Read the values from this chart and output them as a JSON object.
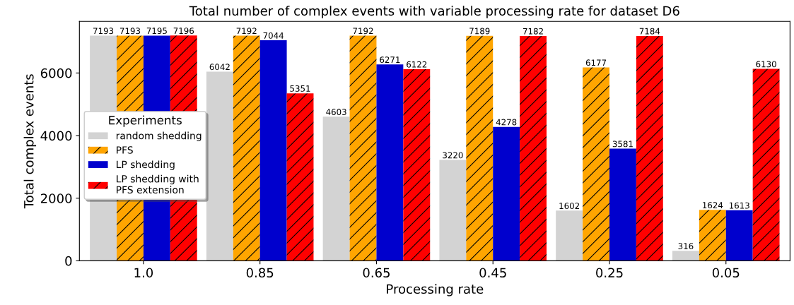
{
  "chart_data": {
    "type": "bar",
    "title": "Total number of complex events with variable processing rate for dataset D6",
    "xlabel": "Processing rate",
    "ylabel": "Total complex events",
    "legend_title": "Experiments",
    "categories": [
      "1.0",
      "0.85",
      "0.65",
      "0.45",
      "0.25",
      "0.05"
    ],
    "series": [
      {
        "name": "random shedding",
        "color": "#d3d3d3",
        "values": [
          7193,
          6042,
          4603,
          3220,
          1602,
          316
        ]
      },
      {
        "name": "PFS",
        "color": "#ffa500",
        "values": [
          7193,
          7192,
          7192,
          7189,
          6177,
          1624
        ]
      },
      {
        "name": "LP shedding",
        "color": "#0000cd",
        "values": [
          7195,
          7044,
          6271,
          4278,
          3581,
          1613
        ]
      },
      {
        "name": "LP shedding with\nPFS extension",
        "color": "#ff0000",
        "values": [
          7196,
          5351,
          6122,
          7182,
          7184,
          6130
        ]
      }
    ],
    "ylim": [
      0,
      7650
    ],
    "yticks": [
      0,
      2000,
      4000,
      6000
    ],
    "data_labels": true,
    "grid": false,
    "legend": "left"
  }
}
